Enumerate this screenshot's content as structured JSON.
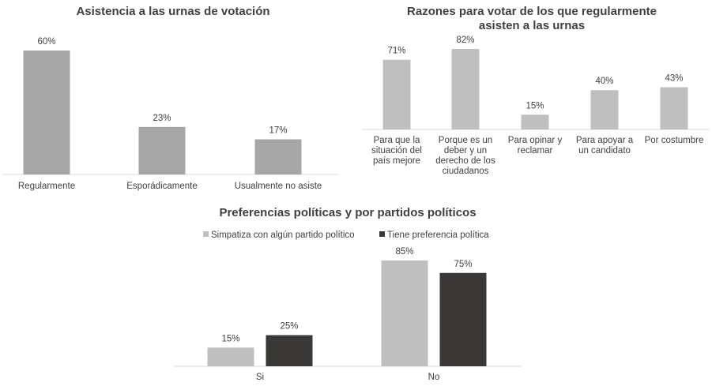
{
  "chart_data": [
    {
      "type": "bar",
      "title": "Asistencia a las urnas de votación",
      "categories": [
        "Regularmente",
        "Esporádicamente",
        "Usualmente no asiste"
      ],
      "values": [
        60,
        23,
        17
      ],
      "value_labels": [
        "60%",
        "23%",
        "17%"
      ],
      "ylim": [
        0,
        60
      ],
      "color": "#a6a6a6"
    },
    {
      "type": "bar",
      "title_lines": [
        "Razones para votar de los que regularmente",
        "asisten a las urnas"
      ],
      "categories": [
        "Para que la situación del país mejore",
        "Porque es un deber y un derecho de los ciudadanos",
        "Para opinar y reclamar",
        "Para apoyar a un candidato",
        "Por costumbre"
      ],
      "category_lines": [
        [
          "Para que la",
          "situación del",
          "país mejore"
        ],
        [
          "Porque es un",
          "deber y un",
          "derecho de los",
          "ciudadanos"
        ],
        [
          "Para opinar y",
          "reclamar"
        ],
        [
          "Para apoyar a",
          "un candidato"
        ],
        [
          "Por costumbre"
        ]
      ],
      "values": [
        71,
        82,
        15,
        40,
        43
      ],
      "value_labels": [
        "71%",
        "82%",
        "15%",
        "40%",
        "43%"
      ],
      "ylim": [
        0,
        82
      ],
      "color": "#bfbfbf"
    },
    {
      "type": "bar",
      "title": "Preferencias políticas y por partidos políticos",
      "categories": [
        "Si",
        "No"
      ],
      "series": [
        {
          "name": "Simpatiza con algún partido político",
          "values": [
            15,
            85
          ],
          "value_labels": [
            "15%",
            "85%"
          ],
          "color": "#bfbfbf"
        },
        {
          "name": "Tiene preferencia política",
          "values": [
            25,
            75
          ],
          "value_labels": [
            "25%",
            "75%"
          ],
          "color": "#3b3838"
        }
      ],
      "legend_position": "top",
      "ylim": [
        0,
        85
      ]
    }
  ]
}
